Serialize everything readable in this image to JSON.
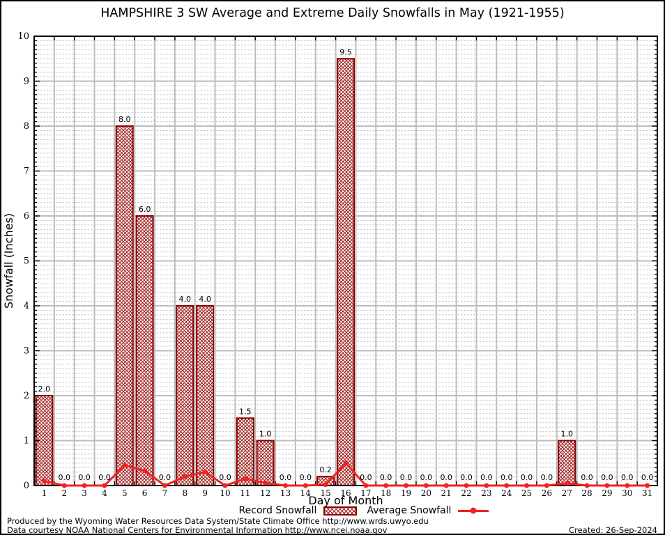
{
  "page": {
    "title": "HAMPSHIRE 3 SW Average and Extreme Daily Snowfalls in May (1921-1955)"
  },
  "legend": {
    "record": "Record Snowfall",
    "average": "Average Snowfall"
  },
  "footer": {
    "line1": "Produced by the Wyoming Water Resources Data System/State Climate Office http://www.wrds.uwyo.edu",
    "line2": "Data courtesy NOAA National Centers for Environmental Information http://www.ncei.noaa.gov",
    "created": "Created: 26-Sep-2024"
  },
  "colors": {
    "bar_border": "#8b0000",
    "bar_hatch": "#9e2020",
    "avg_line": "#f22222",
    "grid_major": "#bdbdbd",
    "grid_minor": "#c6c6c6",
    "text": "#000000"
  },
  "chart_data": {
    "type": "bar",
    "title": "HAMPSHIRE 3 SW Average and Extreme Daily Snowfalls in May (1921-1955)",
    "xlabel": "Day of Month",
    "ylabel": "Snowfall (Inches)",
    "ylim": [
      0,
      10
    ],
    "grid": true,
    "legend_position": "bottom",
    "x": [
      1,
      2,
      3,
      4,
      5,
      6,
      7,
      8,
      9,
      10,
      11,
      12,
      13,
      14,
      15,
      16,
      17,
      18,
      19,
      20,
      21,
      22,
      23,
      24,
      25,
      26,
      27,
      28,
      29,
      30,
      31
    ],
    "bar_labels": [
      "2.0",
      "0.0",
      "0.0",
      "0.0",
      "8.0",
      "6.0",
      "0.0",
      "4.0",
      "4.0",
      "0.0",
      "1.5",
      "1.0",
      "0.0",
      "0.0",
      "0.2",
      "9.5",
      "0.0",
      "0.0",
      "0.0",
      "0.0",
      "0.0",
      "0.0",
      "0.0",
      "0.0",
      "0.0",
      "0.0",
      "1.0",
      "0.0",
      "0.0",
      "0.0",
      "0.0"
    ],
    "series": [
      {
        "name": "Record Snowfall",
        "type": "bar",
        "values": [
          2.0,
          0,
          0,
          0,
          8.0,
          6.0,
          0,
          4.0,
          4.0,
          0,
          1.5,
          1.0,
          0,
          0,
          0.2,
          9.5,
          0,
          0,
          0,
          0,
          0,
          0,
          0,
          0,
          0,
          0,
          1.0,
          0,
          0,
          0,
          0
        ]
      },
      {
        "name": "Average Snowfall",
        "type": "line",
        "values": [
          0.1,
          0,
          0,
          0,
          0.45,
          0.33,
          0,
          0.2,
          0.3,
          0,
          0.15,
          0.06,
          0,
          0,
          0.02,
          0.5,
          0,
          0,
          0,
          0,
          0,
          0,
          0,
          0,
          0,
          0,
          0.05,
          0,
          0,
          0,
          0
        ]
      }
    ]
  }
}
